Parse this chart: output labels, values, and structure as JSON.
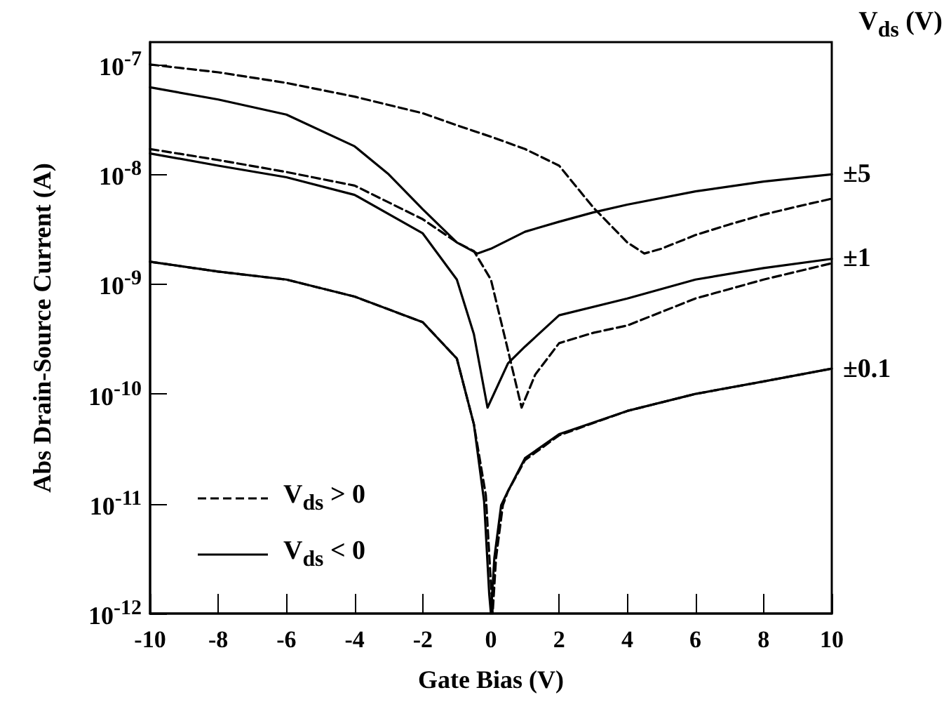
{
  "chart_data": {
    "type": "line",
    "xlabel": "Gate Bias (V)",
    "ylabel": "Abs Drain-Source Current (A)",
    "xlim": [
      -10,
      10
    ],
    "xticks": [
      -10,
      -8,
      -6,
      -4,
      -2,
      0,
      2,
      4,
      6,
      8,
      10
    ],
    "ylim": [
      1e-12,
      1.6e-07
    ],
    "yticks": [
      {
        "value": 1e-12,
        "label": "10$^{-12}$"
      },
      {
        "value": 1e-11,
        "label": "10$^{-11}$"
      },
      {
        "value": 1e-10,
        "label": "10$^{-10}$"
      },
      {
        "value": 1e-09,
        "label": "10$^{-9}$"
      },
      {
        "value": 1e-08,
        "label": "10$^{-8}$"
      },
      {
        "value": 1e-07,
        "label": "10$^{-7}$"
      }
    ],
    "log": "y",
    "grid": false,
    "legend": "bottom left",
    "marker": "none",
    "annotations": [
      "V$_{ds}$ (V)",
      "±5",
      "±1",
      "±0.1"
    ],
    "series": [
      {
        "name": "V$_{ds}$ > 0",
        "color": "#000000",
        "line_style": "dashed",
        "x": [
          -10,
          -8,
          -6,
          -4,
          -2,
          -1,
          0,
          1,
          2,
          3,
          4,
          4.5,
          5,
          6,
          7,
          8,
          9,
          10
        ],
        "values": [
          1e-07,
          8.5e-08,
          6.8e-08,
          5.1e-08,
          3.6e-08,
          2.8e-08,
          2.2e-08,
          1.7e-08,
          1.2e-08,
          5e-09,
          2.4e-09,
          1.9e-09,
          2.1e-09,
          2.8e-09,
          3.5e-09,
          4.3e-09,
          5.1e-09,
          6e-09
        ]
      },
      {
        "name": "V$_{ds}$ < 0",
        "color": "#000000",
        "line_style": "solid",
        "x": [
          -10,
          -8,
          -6,
          -4,
          -3,
          -2,
          -1,
          -0.4,
          0,
          1,
          2,
          3,
          4,
          6,
          8,
          10
        ],
        "values": [
          6.2e-08,
          4.8e-08,
          3.5e-08,
          1.8e-08,
          1e-08,
          4.8e-09,
          2.4e-09,
          1.9e-09,
          2.1e-09,
          3e-09,
          3.7e-09,
          4.5e-09,
          5.3e-09,
          7e-09,
          8.6e-09,
          1e-08
        ]
      },
      {
        "color": "#000000",
        "line_style": "dashed",
        "x": [
          -10,
          -8,
          -6,
          -4,
          -2,
          -1,
          -0.5,
          0,
          0.5,
          0.9,
          1.3,
          2,
          3,
          4,
          6,
          8,
          10
        ],
        "values": [
          1.7e-08,
          1.35e-08,
          1.05e-08,
          7.9e-09,
          3.9e-09,
          2.4e-09,
          2e-09,
          1.1e-09,
          2.5e-10,
          7.5e-11,
          1.5e-10,
          2.9e-10,
          3.6e-10,
          4.2e-10,
          7.4e-10,
          1.1e-09,
          1.55e-09
        ]
      },
      {
        "color": "#000000",
        "line_style": "solid",
        "x": [
          -10,
          -8,
          -6,
          -4,
          -2,
          -1,
          -0.5,
          -0.1,
          0.5,
          1,
          2,
          4,
          6,
          8,
          10
        ],
        "values": [
          1.55e-08,
          1.2e-08,
          9.4e-09,
          6.5e-09,
          2.9e-09,
          1.1e-09,
          3.5e-10,
          7.5e-11,
          1.9e-10,
          2.7e-10,
          5.2e-10,
          7.4e-10,
          1.1e-09,
          1.4e-09,
          1.7e-09
        ]
      },
      {
        "color": "#000000",
        "line_style": "dashed",
        "x": [
          -10,
          -8,
          -6,
          -4,
          -2,
          -1,
          -0.5,
          -0.15,
          0.05,
          0.15,
          0.35,
          0.5,
          1,
          2,
          4,
          6,
          8,
          10
        ],
        "values": [
          1.6e-09,
          1.3e-09,
          1.1e-09,
          7.7e-10,
          4.5e-10,
          2.1e-10,
          5.3e-11,
          1.2e-11,
          1e-12,
          3.2e-12,
          9.7e-12,
          1.3e-11,
          2.5e-11,
          4.2e-11,
          7e-11,
          1e-10,
          1.3e-10,
          1.7e-10
        ]
      },
      {
        "color": "#000000",
        "line_style": "solid",
        "x": [
          -10,
          -8,
          -6,
          -4,
          -2,
          -1,
          -0.5,
          -0.2,
          -0.05,
          0,
          0.1,
          0.3,
          0.5,
          1,
          2,
          4,
          6,
          8,
          10
        ],
        "values": [
          1.6e-09,
          1.3e-09,
          1.1e-09,
          7.7e-10,
          4.5e-10,
          2.1e-10,
          5.3e-11,
          1.05e-11,
          1.5e-12,
          1e-12,
          3.2e-12,
          9.7e-12,
          1.3e-11,
          2.6e-11,
          4.3e-11,
          7e-11,
          1e-10,
          1.3e-10,
          1.7e-10
        ]
      }
    ]
  }
}
